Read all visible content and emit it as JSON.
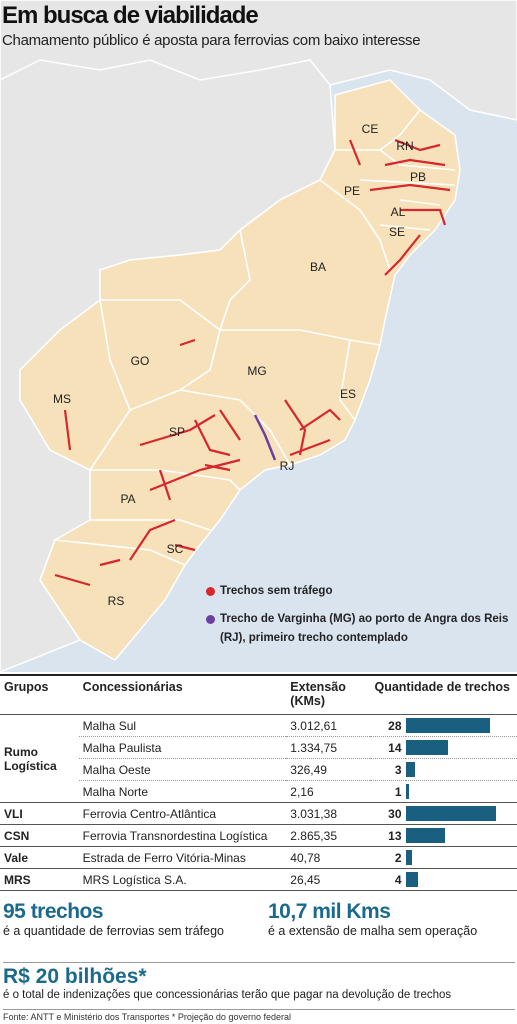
{
  "header": {
    "title": "Em busca de viabilidade",
    "subtitle": "Chamamento público é aposta para ferrovias com baixo interesse"
  },
  "map": {
    "states": [
      "CE",
      "RN",
      "PB",
      "PE",
      "AL",
      "SE",
      "BA",
      "GO",
      "MG",
      "MS",
      "ES",
      "SP",
      "RJ",
      "PA",
      "SC",
      "RS"
    ],
    "legend": [
      {
        "label": "Trechos sem tráfego",
        "color": "#d7262e"
      },
      {
        "label": "Trecho de Varginha (MG) ao porto de Angra dos Reis (RJ), primeiro trecho contemplado",
        "color": "#6b3fa0"
      }
    ]
  },
  "table": {
    "columns": [
      "Grupos",
      "Concessionárias",
      "Extensão (KMs)",
      "Quantidade de trechos"
    ],
    "bar_color": "#1b5f80",
    "groups": [
      {
        "name": "Rumo Logística",
        "rows": [
          {
            "concessionaria": "Malha Sul",
            "extensao": "3.012,61",
            "quantidade": 28
          },
          {
            "concessionaria": "Malha Paulista",
            "extensao": "1.334,75",
            "quantidade": 14
          },
          {
            "concessionaria": "Malha Oeste",
            "extensao": "326,49",
            "quantidade": 3
          },
          {
            "concessionaria": "Malha Norte",
            "extensao": "2,16",
            "quantidade": 1
          }
        ]
      },
      {
        "name": "VLI",
        "rows": [
          {
            "concessionaria": "Ferrovia Centro-Atlântica",
            "extensao": "3.031,38",
            "quantidade": 30
          }
        ]
      },
      {
        "name": "CSN",
        "rows": [
          {
            "concessionaria": "Ferrovia Transnordestina Logística",
            "extensao": "2.865,35",
            "quantidade": 13
          }
        ]
      },
      {
        "name": "Vale",
        "rows": [
          {
            "concessionaria": "Estrada de Ferro Vitória-Minas",
            "extensao": "40,78",
            "quantidade": 2
          }
        ]
      },
      {
        "name": "MRS",
        "rows": [
          {
            "concessionaria": "MRS Logística S.A.",
            "extensao": "26,45",
            "quantidade": 4
          }
        ]
      }
    ]
  },
  "highlights": [
    {
      "value": "95 trechos",
      "text": "é a quantidade de ferrovias sem tráfego"
    },
    {
      "value": "10,7 mil Kms",
      "text": "é a extensão de malha sem operação"
    }
  ],
  "total": {
    "value": "R$ 20 bilhões*",
    "text": "é o total de indenizações que concessionárias terão que pagar na devolução de trechos"
  },
  "footer": "Fonte: ANTT e Ministério dos Transportes * Projeção do governo federal"
}
